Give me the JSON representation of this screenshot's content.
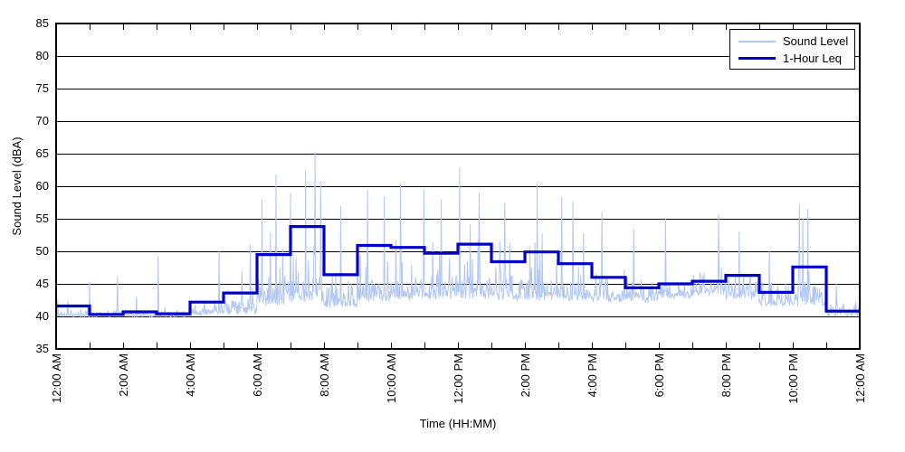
{
  "chart_data": {
    "type": "line",
    "title": "",
    "xlabel": "Time (HH:MM)",
    "ylabel": "Sound Level (dBA)",
    "ylim": [
      35,
      85
    ],
    "ytick_interval": 5,
    "ytick_labels": [
      "35",
      "40",
      "45",
      "50",
      "55",
      "60",
      "65",
      "70",
      "75",
      "80",
      "85"
    ],
    "x_hours_range": [
      0,
      24
    ],
    "xtick_every_hours": 2,
    "minor_tick_every_hours": 1,
    "xtick_labels": [
      "12:00 AM",
      "2:00 AM",
      "4:00 AM",
      "6:00 AM",
      "8:00 AM",
      "10:00 AM",
      "12:00 PM",
      "2:00 PM",
      "4:00 PM",
      "6:00 PM",
      "8:00 PM",
      "10:00 PM",
      "12:00 AM"
    ],
    "grid": {
      "horizontal": true,
      "vertical": false,
      "color": "#000000"
    },
    "legend": {
      "position": "top-right"
    },
    "colors": {
      "axis": "#000000",
      "background": "#FFFFFF"
    },
    "series": [
      {
        "name": "Sound Level",
        "style": "noisy-line",
        "color": "#B3C8F0",
        "hourly_floor_dBA": [
          39.8,
          39.8,
          39.8,
          39.8,
          40.0,
          40.2,
          41.5,
          42.0,
          41.2,
          42.0,
          42.5,
          42.5,
          42.5,
          42.2,
          42.2,
          42.2,
          42.0,
          42.0,
          42.5,
          43.0,
          42.5,
          41.5,
          41.4,
          40.0
        ],
        "hourly_spread_dBA": [
          0.5,
          0.4,
          0.4,
          0.4,
          0.9,
          1.4,
          3.2,
          3.6,
          2.6,
          3.0,
          3.0,
          3.1,
          3.1,
          2.9,
          3.0,
          2.9,
          2.6,
          2.2,
          2.2,
          1.9,
          2.2,
          1.8,
          2.4,
          1.0
        ],
        "hourly_peak_dBA": [
          44.5,
          46.3,
          45.5,
          49.3,
          50.2,
          51.5,
          61.8,
          65.3,
          58.5,
          60.0,
          60.4,
          60.0,
          62.9,
          59.0,
          60.4,
          58.3,
          56.5,
          54.0,
          55.2,
          55.7,
          54.5,
          51.0,
          57.2,
          46.0
        ],
        "notable_peaks": [
          {
            "t_hours": 0.05,
            "dBA": 42.6
          },
          {
            "t_hours": 0.35,
            "dBA": 42.4
          },
          {
            "t_hours": 1.0,
            "dBA": 45.3
          },
          {
            "t_hours": 1.83,
            "dBA": 46.3
          },
          {
            "t_hours": 2.4,
            "dBA": 43.0
          },
          {
            "t_hours": 3.05,
            "dBA": 49.3
          },
          {
            "t_hours": 4.86,
            "dBA": 50.2
          },
          {
            "t_hours": 5.55,
            "dBA": 47.0
          },
          {
            "t_hours": 5.8,
            "dBA": 51.0
          },
          {
            "t_hours": 6.15,
            "dBA": 58.0
          },
          {
            "t_hours": 6.57,
            "dBA": 61.8
          },
          {
            "t_hours": 7.0,
            "dBA": 59.0
          },
          {
            "t_hours": 7.45,
            "dBA": 62.5
          },
          {
            "t_hours": 7.73,
            "dBA": 65.3
          },
          {
            "t_hours": 7.9,
            "dBA": 60.8
          },
          {
            "t_hours": 8.5,
            "dBA": 57.0
          },
          {
            "t_hours": 9.3,
            "dBA": 59.5
          },
          {
            "t_hours": 9.8,
            "dBA": 58.5
          },
          {
            "t_hours": 10.28,
            "dBA": 60.4
          },
          {
            "t_hours": 10.98,
            "dBA": 59.5
          },
          {
            "t_hours": 11.5,
            "dBA": 58.0
          },
          {
            "t_hours": 12.05,
            "dBA": 62.9
          },
          {
            "t_hours": 12.63,
            "dBA": 59.0
          },
          {
            "t_hours": 13.4,
            "dBA": 57.5
          },
          {
            "t_hours": 14.37,
            "dBA": 60.4
          },
          {
            "t_hours": 15.1,
            "dBA": 58.3
          },
          {
            "t_hours": 15.43,
            "dBA": 57.6
          },
          {
            "t_hours": 16.3,
            "dBA": 56.0
          },
          {
            "t_hours": 17.25,
            "dBA": 53.4
          },
          {
            "t_hours": 18.2,
            "dBA": 55.0
          },
          {
            "t_hours": 19.78,
            "dBA": 55.7
          },
          {
            "t_hours": 20.4,
            "dBA": 53.0
          },
          {
            "t_hours": 21.3,
            "dBA": 50.0
          },
          {
            "t_hours": 22.2,
            "dBA": 57.2
          },
          {
            "t_hours": 22.3,
            "dBA": 55.0
          },
          {
            "t_hours": 22.45,
            "dBA": 56.5
          },
          {
            "t_hours": 23.3,
            "dBA": 45.0
          }
        ]
      },
      {
        "name": "1-Hour Leq",
        "style": "step",
        "color": "#0000CC",
        "hourly_leq_dBA": [
          41.6,
          40.3,
          40.7,
          40.4,
          42.2,
          43.6,
          49.5,
          53.8,
          46.4,
          50.9,
          50.6,
          49.7,
          51.1,
          48.4,
          49.9,
          48.1,
          46.0,
          44.4,
          45.0,
          45.4,
          46.3,
          43.7,
          47.6,
          40.8
        ]
      }
    ]
  }
}
